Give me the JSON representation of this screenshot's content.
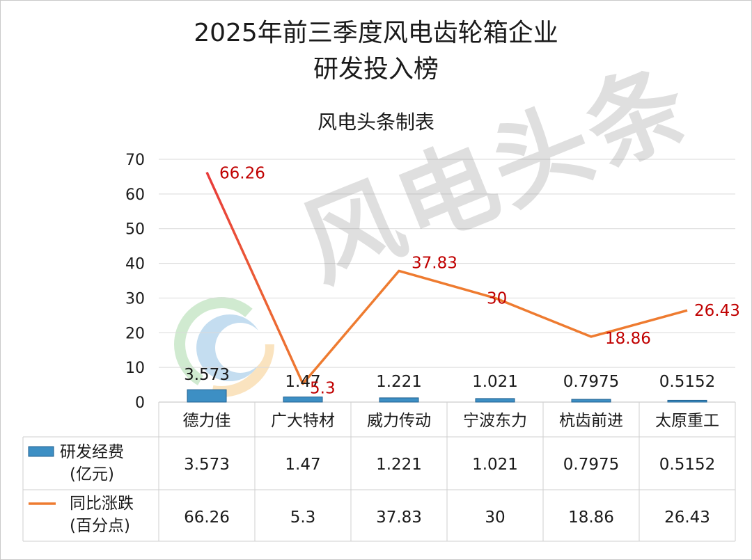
{
  "title": {
    "line1": "2025年前三季度风电齿轮箱企业",
    "line2": "研发投入榜"
  },
  "subtitle": "风电头条制表",
  "watermark": "风电头条",
  "colors": {
    "bar_fill": "#3d8fc4",
    "bar_edge": "#1f5f8f",
    "line": "#ee7b30",
    "line_start": "#e83b3b",
    "line_label": "#c00000",
    "grid": "#d9d9d9"
  },
  "chart_data": {
    "type": "bar+line",
    "title": "2025年前三季度风电齿轮箱企业研发投入榜",
    "categories": [
      "德力佳",
      "广大特材",
      "威力传动",
      "宁波东力",
      "杭齿前进",
      "太原重工"
    ],
    "ylim": [
      0,
      70
    ],
    "yticks": [
      0,
      10,
      20,
      30,
      40,
      50,
      60,
      70
    ],
    "grid": true,
    "series": [
      {
        "name": "研发经费\n(亿元)",
        "name_line1": "研发经费",
        "name_line2": "(亿元)",
        "type": "bar",
        "values": [
          3.573,
          1.47,
          1.221,
          1.021,
          0.7975,
          0.5152
        ],
        "labels": [
          "3.573",
          "1.47",
          "1.221",
          "1.021",
          "0.7975",
          "0.5152"
        ]
      },
      {
        "name": "同比涨跌\n(百分点)",
        "name_line1": "同比涨跌",
        "name_line2": "(百分点)",
        "type": "line",
        "values": [
          66.26,
          5.3,
          37.83,
          30,
          18.86,
          26.43
        ],
        "labels": [
          "66.26",
          "5.3",
          "37.83",
          "30",
          "18.86",
          "26.43"
        ]
      }
    ],
    "data_table": true
  }
}
